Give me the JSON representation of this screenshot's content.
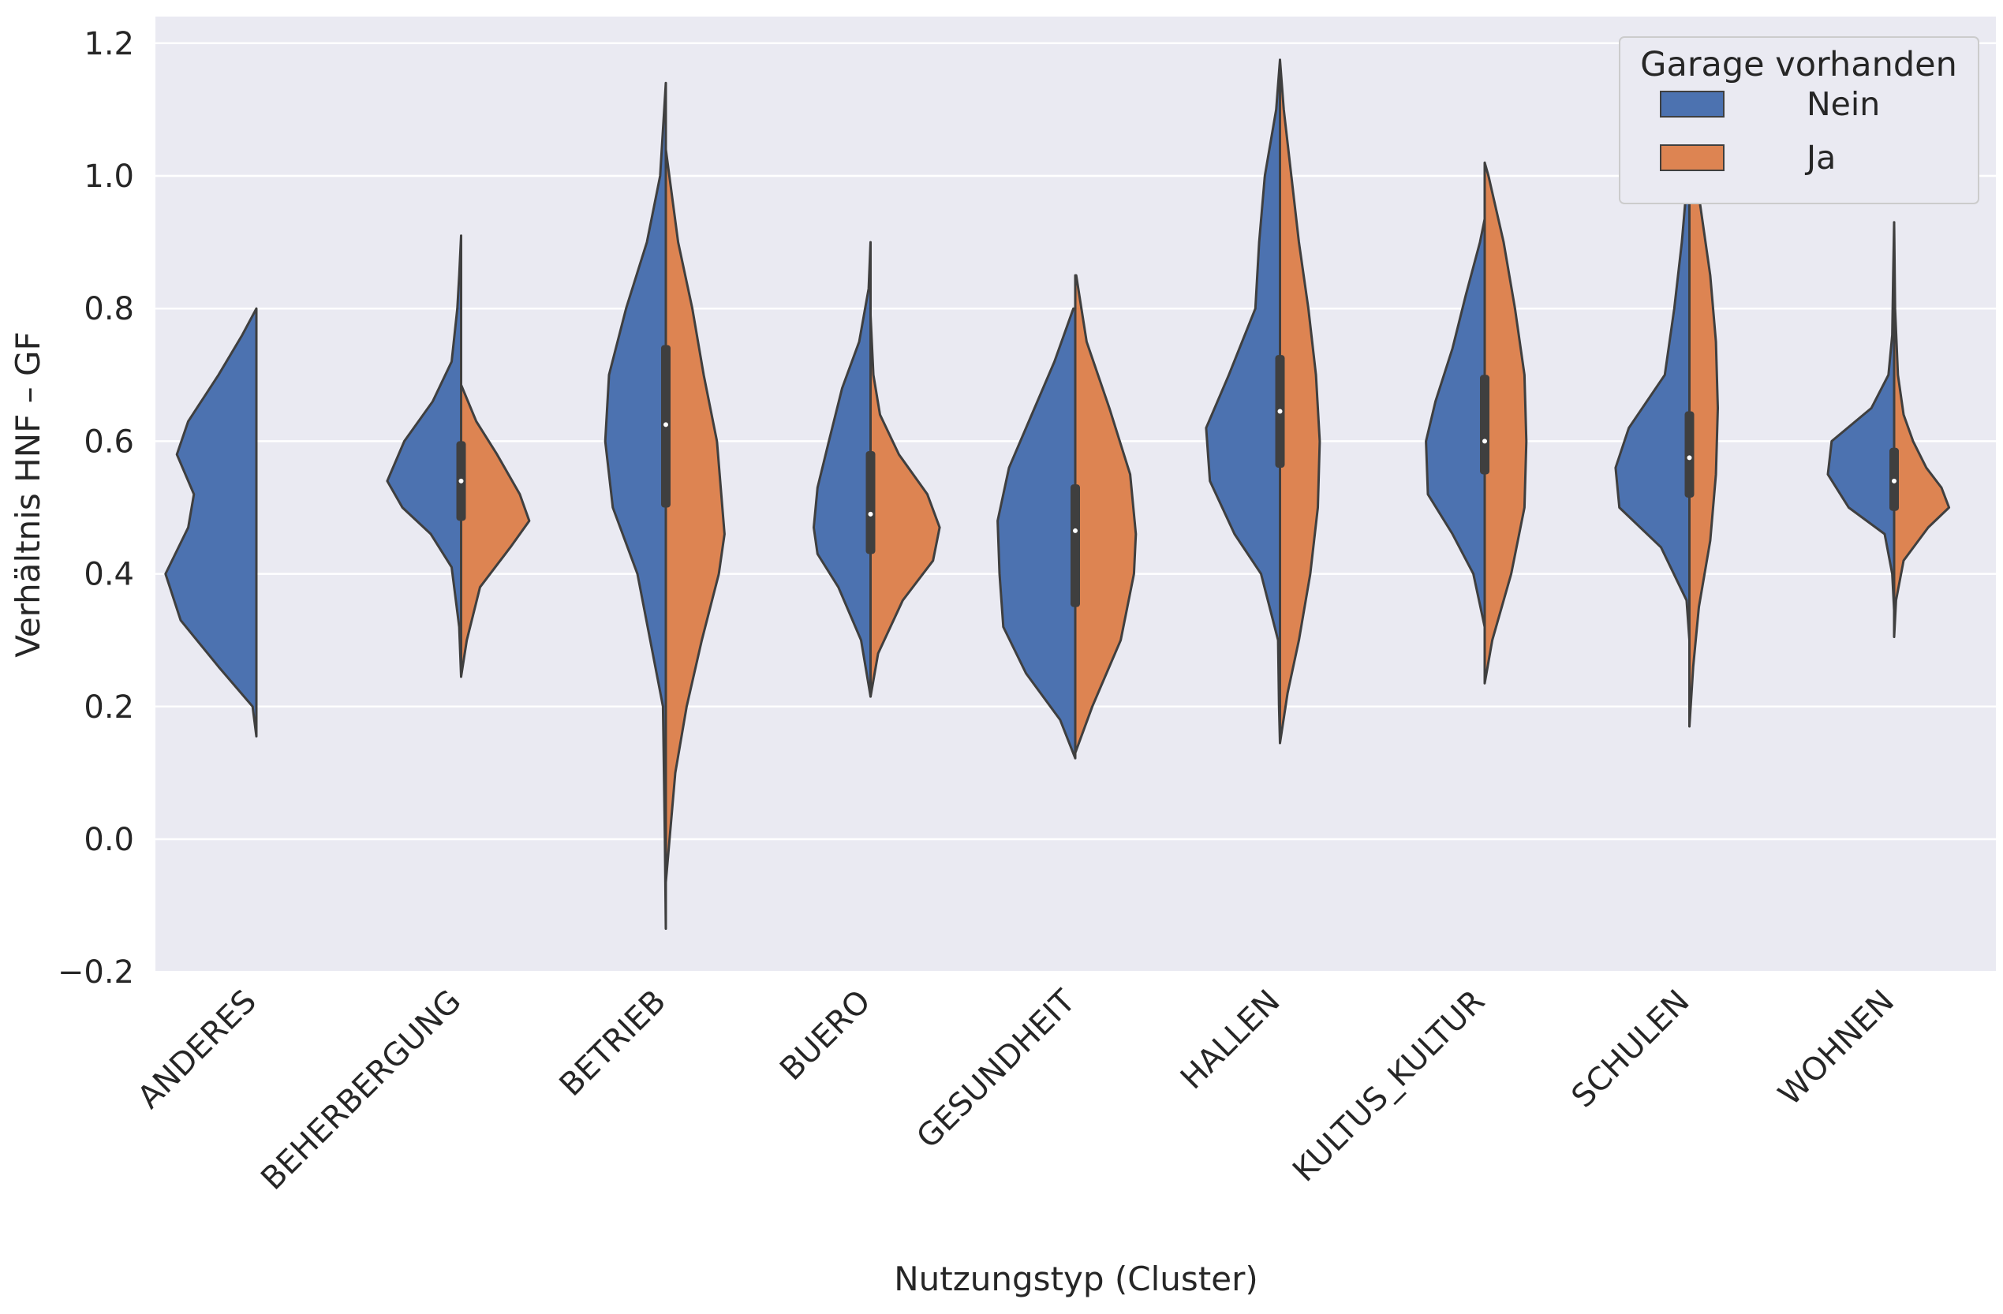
{
  "chart_data": {
    "type": "violin",
    "split": true,
    "xlabel": "Nutzungstyp (Cluster)",
    "ylabel": "Verhältnis HNF – GF",
    "ylim": [
      -0.2,
      1.24
    ],
    "yticks": [
      -0.2,
      0.0,
      0.2,
      0.4,
      0.6,
      0.8,
      1.0,
      1.2
    ],
    "ytick_labels": [
      "−0.2",
      "0.0",
      "0.2",
      "0.4",
      "0.6",
      "0.8",
      "1.0",
      "1.2"
    ],
    "grid": true,
    "background_color": "#eaeaf2",
    "legend": {
      "title": "Garage vorhanden",
      "placement": "top-right",
      "entries": [
        {
          "label": "Nein",
          "color": "#4c72b0"
        },
        {
          "label": "Ja",
          "color": "#dd8452"
        }
      ]
    },
    "categories": [
      "ANDERES",
      "BEHERBERGUNG",
      "BETRIEB",
      "BUERO",
      "GESUNDHEIT",
      "HALLEN",
      "KULTUS_KULTUR",
      "SCHULEN",
      "WOHNEN"
    ],
    "series": [
      {
        "name": "Nein",
        "color": "#4c72b0",
        "side": "left",
        "violins": [
          {
            "profile": [
              [
                0.155,
                0.0
              ],
              [
                0.2,
                0.04
              ],
              [
                0.26,
                0.4
              ],
              [
                0.33,
                0.8
              ],
              [
                0.4,
                0.96
              ],
              [
                0.47,
                0.72
              ],
              [
                0.52,
                0.66
              ],
              [
                0.58,
                0.84
              ],
              [
                0.63,
                0.72
              ],
              [
                0.7,
                0.4
              ],
              [
                0.76,
                0.15
              ],
              [
                0.8,
                0.0
              ]
            ]
          },
          {
            "profile": [
              [
                0.245,
                0.0
              ],
              [
                0.32,
                0.02
              ],
              [
                0.41,
                0.1
              ],
              [
                0.46,
                0.32
              ],
              [
                0.5,
                0.62
              ],
              [
                0.54,
                0.78
              ],
              [
                0.6,
                0.6
              ],
              [
                0.66,
                0.3
              ],
              [
                0.72,
                0.1
              ],
              [
                0.8,
                0.04
              ],
              [
                0.85,
                0.02
              ],
              [
                0.91,
                0.0
              ]
            ]
          },
          {
            "profile": [
              [
                -0.135,
                0.0
              ],
              [
                0.0,
                0.01
              ],
              [
                0.2,
                0.03
              ],
              [
                0.4,
                0.3
              ],
              [
                0.5,
                0.56
              ],
              [
                0.6,
                0.64
              ],
              [
                0.7,
                0.6
              ],
              [
                0.8,
                0.42
              ],
              [
                0.9,
                0.2
              ],
              [
                1.0,
                0.06
              ],
              [
                1.14,
                0.0
              ]
            ]
          },
          {
            "profile": [
              [
                0.215,
                0.0
              ],
              [
                0.3,
                0.1
              ],
              [
                0.38,
                0.34
              ],
              [
                0.43,
                0.56
              ],
              [
                0.47,
                0.6
              ],
              [
                0.53,
                0.56
              ],
              [
                0.6,
                0.44
              ],
              [
                0.68,
                0.3
              ],
              [
                0.75,
                0.12
              ],
              [
                0.83,
                0.02
              ],
              [
                0.9,
                0.0
              ]
            ]
          },
          {
            "profile": [
              [
                0.122,
                0.0
              ],
              [
                0.18,
                0.16
              ],
              [
                0.25,
                0.52
              ],
              [
                0.32,
                0.76
              ],
              [
                0.4,
                0.8
              ],
              [
                0.48,
                0.82
              ],
              [
                0.56,
                0.7
              ],
              [
                0.64,
                0.46
              ],
              [
                0.72,
                0.22
              ],
              [
                0.8,
                0.02
              ]
            ]
          },
          {
            "profile": [
              [
                0.145,
                0.0
              ],
              [
                0.2,
                0.01
              ],
              [
                0.3,
                0.02
              ],
              [
                0.4,
                0.2
              ],
              [
                0.46,
                0.48
              ],
              [
                0.54,
                0.74
              ],
              [
                0.62,
                0.78
              ],
              [
                0.7,
                0.54
              ],
              [
                0.8,
                0.26
              ],
              [
                0.9,
                0.22
              ],
              [
                1.0,
                0.16
              ],
              [
                1.1,
                0.04
              ],
              [
                1.175,
                0.0
              ]
            ]
          },
          {
            "profile": [
              [
                0.32,
                0.0
              ],
              [
                0.4,
                0.12
              ],
              [
                0.46,
                0.34
              ],
              [
                0.52,
                0.6
              ],
              [
                0.6,
                0.62
              ],
              [
                0.66,
                0.52
              ],
              [
                0.74,
                0.34
              ],
              [
                0.82,
                0.2
              ],
              [
                0.9,
                0.05
              ],
              [
                0.935,
                0.0
              ]
            ]
          },
          {
            "profile": [
              [
                0.3,
                0.0
              ],
              [
                0.36,
                0.03
              ],
              [
                0.44,
                0.3
              ],
              [
                0.5,
                0.74
              ],
              [
                0.56,
                0.78
              ],
              [
                0.62,
                0.64
              ],
              [
                0.7,
                0.26
              ],
              [
                0.8,
                0.16
              ],
              [
                0.9,
                0.08
              ],
              [
                1.0,
                0.02
              ],
              [
                1.07,
                0.0
              ]
            ]
          },
          {
            "profile": [
              [
                0.345,
                0.0
              ],
              [
                0.4,
                0.02
              ],
              [
                0.46,
                0.1
              ],
              [
                0.5,
                0.48
              ],
              [
                0.55,
                0.7
              ],
              [
                0.6,
                0.66
              ],
              [
                0.65,
                0.24
              ],
              [
                0.7,
                0.06
              ],
              [
                0.76,
                0.02
              ],
              [
                0.85,
                0.01
              ],
              [
                0.93,
                0.0
              ]
            ]
          }
        ]
      },
      {
        "name": "Ja",
        "color": "#dd8452",
        "side": "right",
        "violins": [
          {
            "profile": []
          },
          {
            "profile": [
              [
                0.245,
                0.0
              ],
              [
                0.3,
                0.06
              ],
              [
                0.38,
                0.2
              ],
              [
                0.44,
                0.52
              ],
              [
                0.48,
                0.72
              ],
              [
                0.52,
                0.62
              ],
              [
                0.58,
                0.38
              ],
              [
                0.63,
                0.16
              ],
              [
                0.685,
                0.0
              ]
            ]
          },
          {
            "profile": [
              [
                -0.065,
                0.0
              ],
              [
                0.1,
                0.1
              ],
              [
                0.2,
                0.22
              ],
              [
                0.3,
                0.38
              ],
              [
                0.4,
                0.56
              ],
              [
                0.46,
                0.62
              ],
              [
                0.6,
                0.54
              ],
              [
                0.7,
                0.4
              ],
              [
                0.8,
                0.28
              ],
              [
                0.9,
                0.13
              ],
              [
                1.04,
                0.0
              ]
            ]
          },
          {
            "profile": [
              [
                0.215,
                0.0
              ],
              [
                0.28,
                0.08
              ],
              [
                0.36,
                0.34
              ],
              [
                0.42,
                0.66
              ],
              [
                0.47,
                0.73
              ],
              [
                0.52,
                0.6
              ],
              [
                0.58,
                0.3
              ],
              [
                0.64,
                0.1
              ],
              [
                0.7,
                0.03
              ],
              [
                0.79,
                0.0
              ]
            ]
          },
          {
            "profile": [
              [
                0.13,
                0.0
              ],
              [
                0.2,
                0.18
              ],
              [
                0.3,
                0.48
              ],
              [
                0.4,
                0.62
              ],
              [
                0.46,
                0.64
              ],
              [
                0.55,
                0.58
              ],
              [
                0.65,
                0.36
              ],
              [
                0.75,
                0.12
              ],
              [
                0.85,
                0.01
              ]
            ]
          },
          {
            "profile": [
              [
                0.145,
                0.0
              ],
              [
                0.22,
                0.08
              ],
              [
                0.3,
                0.2
              ],
              [
                0.4,
                0.32
              ],
              [
                0.5,
                0.4
              ],
              [
                0.6,
                0.42
              ],
              [
                0.7,
                0.38
              ],
              [
                0.8,
                0.3
              ],
              [
                0.9,
                0.2
              ],
              [
                1.0,
                0.12
              ],
              [
                1.1,
                0.04
              ],
              [
                1.175,
                0.0
              ]
            ]
          },
          {
            "profile": [
              [
                0.235,
                0.0
              ],
              [
                0.3,
                0.08
              ],
              [
                0.4,
                0.28
              ],
              [
                0.5,
                0.42
              ],
              [
                0.6,
                0.44
              ],
              [
                0.7,
                0.42
              ],
              [
                0.8,
                0.32
              ],
              [
                0.9,
                0.2
              ],
              [
                1.0,
                0.04
              ],
              [
                1.02,
                0.0
              ]
            ]
          },
          {
            "profile": [
              [
                0.17,
                0.0
              ],
              [
                0.26,
                0.04
              ],
              [
                0.35,
                0.1
              ],
              [
                0.45,
                0.22
              ],
              [
                0.55,
                0.28
              ],
              [
                0.65,
                0.3
              ],
              [
                0.75,
                0.28
              ],
              [
                0.85,
                0.22
              ],
              [
                0.95,
                0.12
              ],
              [
                1.07,
                0.0
              ]
            ]
          },
          {
            "profile": [
              [
                0.305,
                0.0
              ],
              [
                0.36,
                0.02
              ],
              [
                0.42,
                0.1
              ],
              [
                0.47,
                0.36
              ],
              [
                0.5,
                0.58
              ],
              [
                0.53,
                0.5
              ],
              [
                0.56,
                0.34
              ],
              [
                0.6,
                0.2
              ],
              [
                0.64,
                0.1
              ],
              [
                0.7,
                0.04
              ],
              [
                0.8,
                0.01
              ],
              [
                0.93,
                0.0
              ]
            ]
          }
        ]
      }
    ],
    "inner_box": [
      {
        "q1": null,
        "median": null,
        "q3": null
      },
      {
        "q1": 0.48,
        "median": 0.54,
        "q3": 0.6
      },
      {
        "q1": 0.5,
        "median": 0.625,
        "q3": 0.745
      },
      {
        "q1": 0.43,
        "median": 0.49,
        "q3": 0.585
      },
      {
        "q1": 0.35,
        "median": 0.465,
        "q3": 0.535
      },
      {
        "q1": 0.56,
        "median": 0.645,
        "q3": 0.73
      },
      {
        "q1": 0.55,
        "median": 0.6,
        "q3": 0.7
      },
      {
        "q1": 0.515,
        "median": 0.575,
        "q3": 0.645
      },
      {
        "q1": 0.495,
        "median": 0.54,
        "q3": 0.59
      }
    ]
  }
}
